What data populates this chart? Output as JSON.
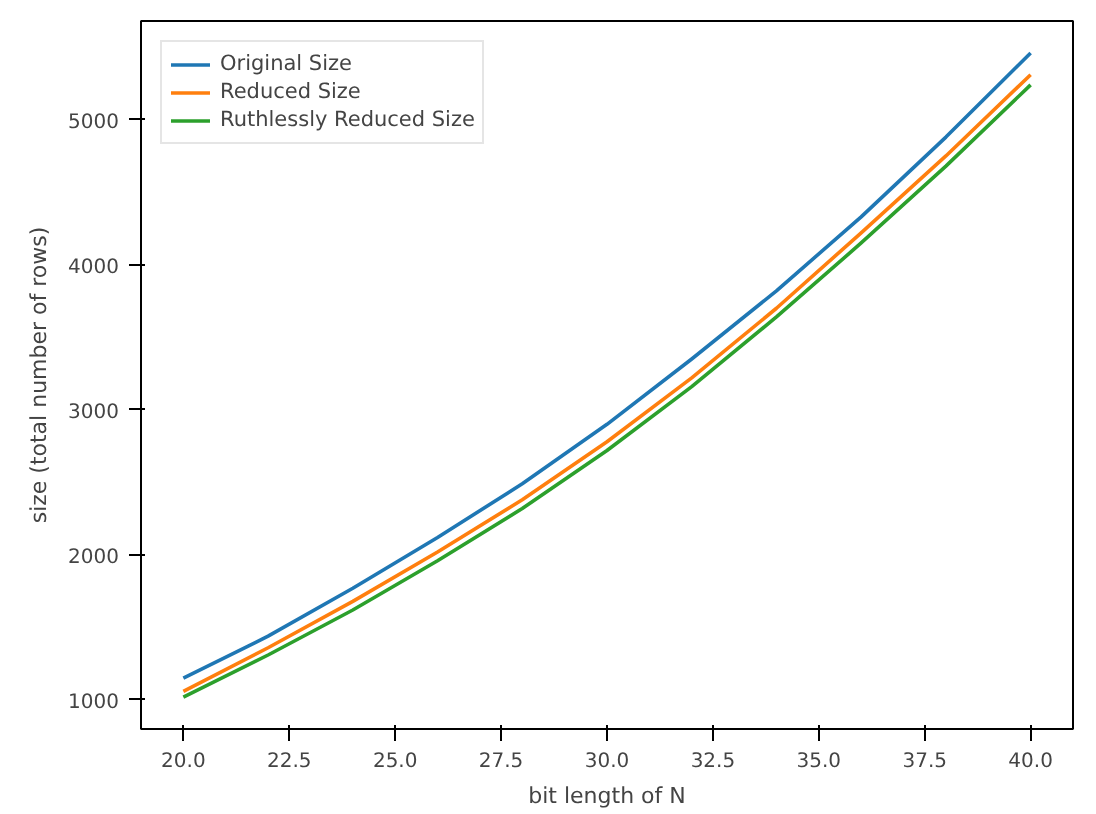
{
  "chart_data": {
    "type": "line",
    "xlabel": "bit length of N",
    "ylabel": "size (total number of rows)",
    "x": [
      20,
      22,
      24,
      26,
      28,
      30,
      32,
      34,
      36,
      38,
      40
    ],
    "series": [
      {
        "name": "Original Size",
        "color": "#1f77b4",
        "values": [
          1150,
          1440,
          1770,
          2120,
          2490,
          2900,
          3350,
          3820,
          4330,
          4880,
          5460
        ]
      },
      {
        "name": "Reduced Size",
        "color": "#ff7f0e",
        "values": [
          1060,
          1360,
          1680,
          2020,
          2380,
          2780,
          3220,
          3700,
          4220,
          4750,
          5310
        ]
      },
      {
        "name": "Ruthlessly Reduced Size",
        "color": "#2ca02c",
        "values": [
          1020,
          1310,
          1620,
          1960,
          2320,
          2720,
          3160,
          3640,
          4150,
          4680,
          5240
        ]
      }
    ],
    "xlim": [
      19,
      41
    ],
    "ylim": [
      800,
      5680
    ],
    "xticks": [
      {
        "value": 20,
        "label": "20.0"
      },
      {
        "value": 22.5,
        "label": "22.5"
      },
      {
        "value": 25,
        "label": "25.0"
      },
      {
        "value": 27.5,
        "label": "27.5"
      },
      {
        "value": 30,
        "label": "30.0"
      },
      {
        "value": 32.5,
        "label": "32.5"
      },
      {
        "value": 35,
        "label": "35.0"
      },
      {
        "value": 37.5,
        "label": "37.5"
      },
      {
        "value": 40,
        "label": "40.0"
      }
    ],
    "yticks": [
      1000,
      2000,
      3000,
      4000,
      5000
    ],
    "grid": false,
    "legend": "top left"
  }
}
